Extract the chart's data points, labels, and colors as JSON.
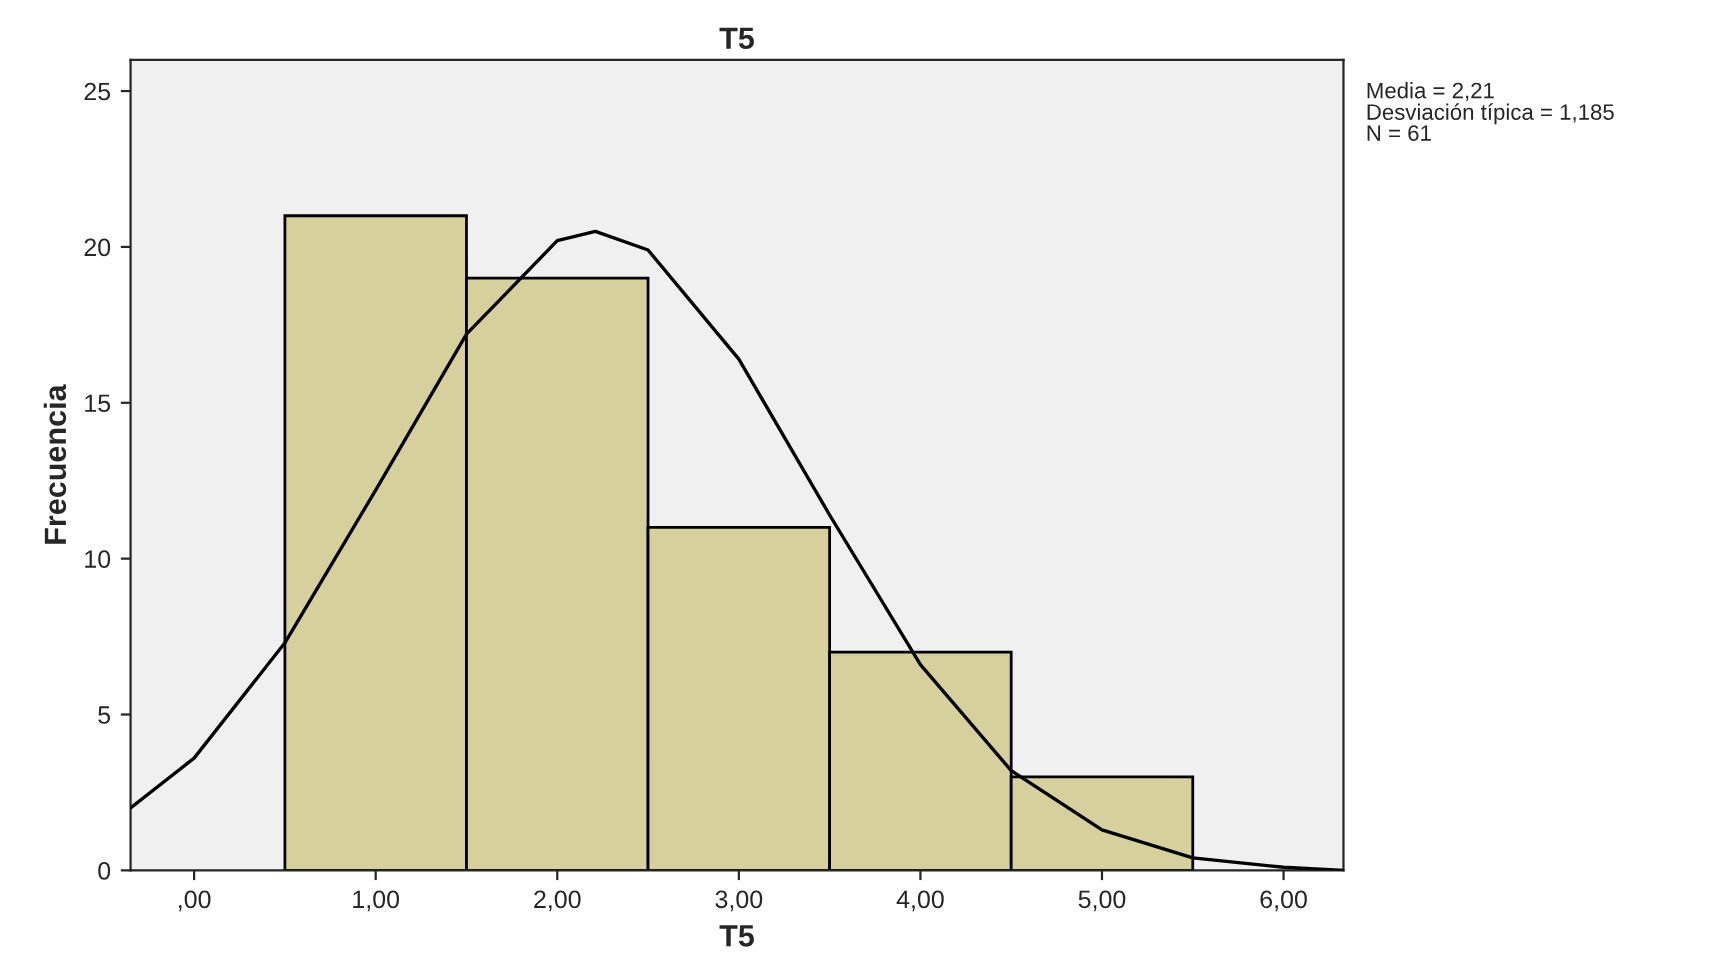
{
  "chart_data": {
    "type": "histogram",
    "title": "T5",
    "xlabel": "T5",
    "ylabel": "Frecuencia",
    "bins": [
      0.5,
      1.5,
      2.5,
      3.5,
      4.5,
      5.5
    ],
    "values": [
      21,
      19,
      11,
      7,
      3
    ],
    "color": "#d6d19c",
    "series": [
      {
        "type": "line",
        "color": "#000000",
        "x": [
          -0.35,
          0,
          0.5,
          1,
          1.5,
          2,
          2.21,
          2.5,
          3,
          3.5,
          4,
          4.5,
          5,
          5.5,
          6,
          6.33
        ],
        "values": [
          2.0,
          3.6,
          7.3,
          12.2,
          17.2,
          20.2,
          20.5,
          19.9,
          16.4,
          11.4,
          6.6,
          3.2,
          1.3,
          0.4,
          0.1,
          0
        ]
      }
    ],
    "xlim": [
      -0.35,
      6.33
    ],
    "xticks": [
      {
        "value": 0,
        "label": ",00"
      },
      {
        "value": 1,
        "label": "1,00"
      },
      {
        "value": 2,
        "label": "2,00"
      },
      {
        "value": 3,
        "label": "3,00"
      },
      {
        "value": 4,
        "label": "4,00"
      },
      {
        "value": 5,
        "label": "5,00"
      },
      {
        "value": 6,
        "label": "6,00"
      }
    ],
    "ylim": [
      0,
      26
    ],
    "yticks": [
      0,
      5,
      10,
      15,
      20,
      25
    ],
    "grid": false,
    "annotations": [
      "Media = 2,21",
      "Desviación típica = 1,185",
      "N = 61"
    ]
  }
}
